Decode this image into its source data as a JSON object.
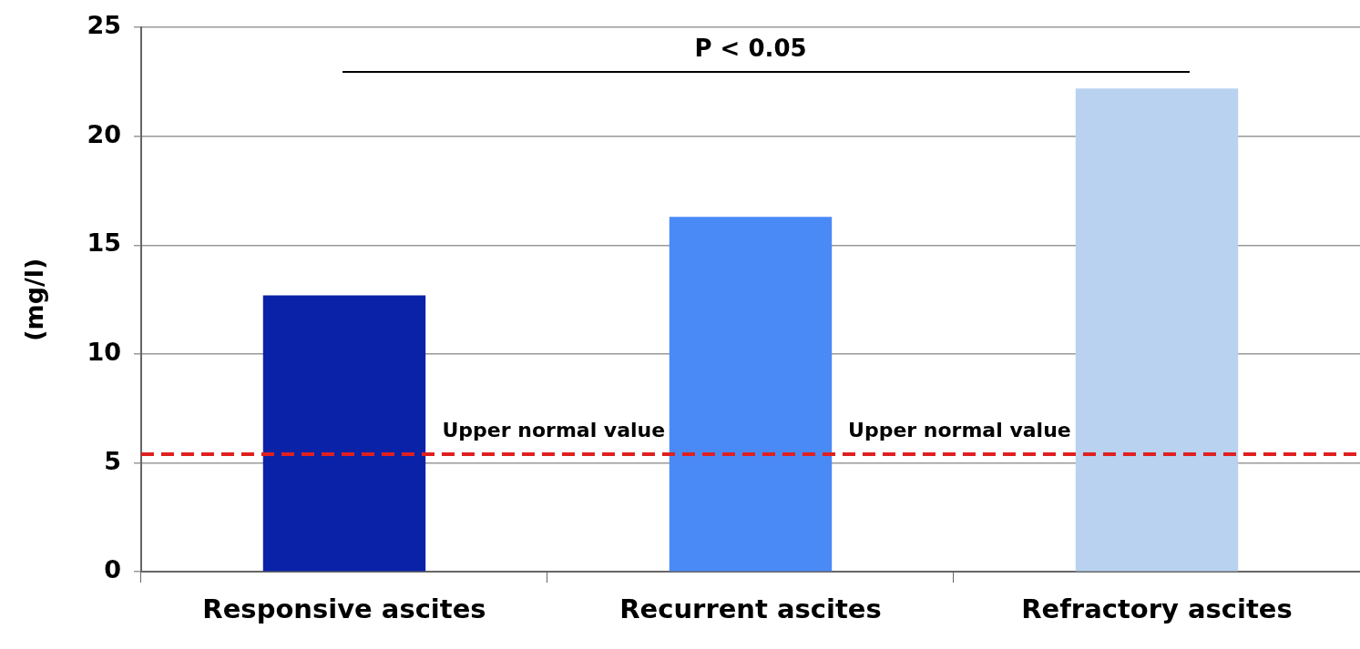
{
  "chart_data": {
    "type": "bar",
    "ylabel": "(mg/l)",
    "categories": [
      "Responsive ascites",
      "Recurrent ascites",
      "Refractory ascites"
    ],
    "values": [
      12.7,
      16.3,
      22.2
    ],
    "colors": [
      "#0a22a8",
      "#4a8af7",
      "#b8d2f0"
    ],
    "ylim": [
      0,
      25
    ],
    "yticks": [
      0,
      5,
      10,
      15,
      20,
      25
    ],
    "grid": "y",
    "legend": false,
    "ref_lines": [
      {
        "axis": "y",
        "value": 5.4,
        "label": "Upper normal value",
        "color": "#e02020",
        "line_style": "dashed"
      }
    ],
    "annotations": [
      "P < 0.05",
      "Upper normal value"
    ]
  }
}
